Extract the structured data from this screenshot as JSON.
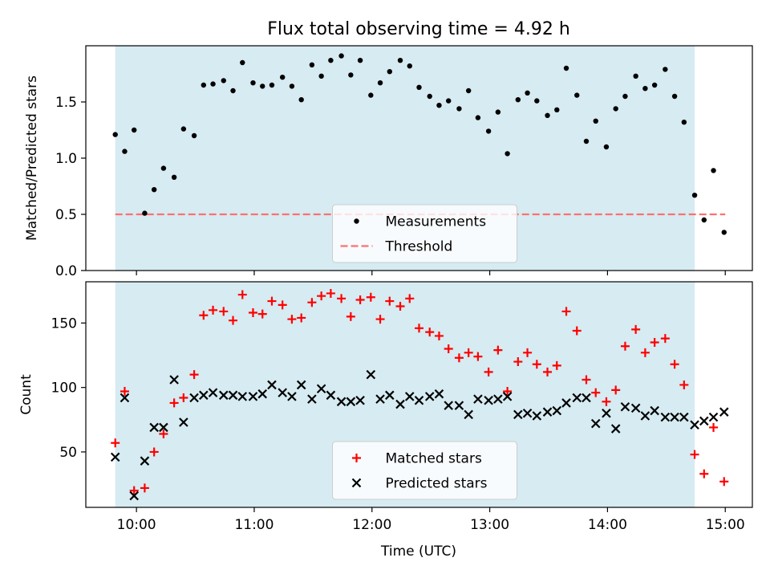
{
  "figure": {
    "title": "Flux total observing time = 4.92 h",
    "xlabel": "Time (UTC)"
  },
  "chart_data": [
    {
      "type": "scatter",
      "panel": "top",
      "title": "Flux total observing time = 4.92 h",
      "xlabel": "Time (UTC)",
      "ylabel": "Matched/Predicted stars",
      "x_unit": "hours UTC",
      "xlim": [
        9.57,
        15.23
      ],
      "ylim": [
        0,
        2.0
      ],
      "yticks": [
        0.0,
        0.5,
        1.0,
        1.5
      ],
      "ytick_labels": [
        "0.0",
        "0.5",
        "1.0",
        "1.5"
      ],
      "xticks": [
        10,
        11,
        12,
        13,
        14,
        15
      ],
      "xtick_labels": [
        "10:00",
        "11:00",
        "12:00",
        "13:00",
        "14:00",
        "15:00"
      ],
      "show_xtick_labels": false,
      "shaded_span": [
        9.82,
        14.74
      ],
      "shade_color": "#add8e6",
      "threshold": {
        "name": "Threshold",
        "y": 0.5,
        "x_range": [
          9.82,
          15.0
        ],
        "color": "#ff7070"
      },
      "legend_position": "lower-center",
      "series": [
        {
          "name": "Measurements",
          "marker": "dot",
          "color": "#000000",
          "x": [
            9.82,
            9.9,
            9.98,
            10.07,
            10.15,
            10.23,
            10.32,
            10.4,
            10.49,
            10.57,
            10.65,
            10.74,
            10.82,
            10.9,
            10.99,
            11.07,
            11.15,
            11.24,
            11.32,
            11.4,
            11.49,
            11.57,
            11.65,
            11.74,
            11.82,
            11.9,
            11.99,
            12.07,
            12.15,
            12.24,
            12.32,
            12.4,
            12.49,
            12.57,
            12.65,
            12.74,
            12.82,
            12.9,
            12.99,
            13.07,
            13.15,
            13.24,
            13.32,
            13.4,
            13.49,
            13.57,
            13.65,
            13.74,
            13.82,
            13.9,
            13.99,
            14.07,
            14.15,
            14.24,
            14.32,
            14.4,
            14.49,
            14.57,
            14.65,
            14.74,
            14.82,
            14.9,
            14.99
          ],
          "y": [
            1.21,
            1.06,
            1.25,
            0.51,
            0.72,
            0.91,
            0.83,
            1.26,
            1.2,
            1.65,
            1.66,
            1.69,
            1.6,
            1.85,
            1.67,
            1.64,
            1.65,
            1.72,
            1.64,
            1.52,
            1.83,
            1.73,
            1.87,
            1.91,
            1.74,
            1.87,
            1.56,
            1.67,
            1.77,
            1.87,
            1.82,
            1.63,
            1.55,
            1.47,
            1.51,
            1.44,
            1.6,
            1.36,
            1.24,
            1.41,
            1.04,
            1.52,
            1.58,
            1.51,
            1.38,
            1.43,
            1.8,
            1.56,
            1.15,
            1.33,
            1.1,
            1.44,
            1.55,
            1.73,
            1.62,
            1.65,
            1.79,
            1.55,
            1.32,
            0.67,
            0.45,
            0.89,
            0.34
          ]
        }
      ]
    },
    {
      "type": "scatter",
      "panel": "bottom",
      "xlabel": "Time (UTC)",
      "ylabel": "Count",
      "x_unit": "hours UTC",
      "xlim": [
        9.57,
        15.23
      ],
      "ylim": [
        7,
        182
      ],
      "yticks": [
        50,
        100,
        150
      ],
      "ytick_labels": [
        "50",
        "100",
        "150"
      ],
      "xticks": [
        10,
        11,
        12,
        13,
        14,
        15
      ],
      "xtick_labels": [
        "10:00",
        "11:00",
        "12:00",
        "13:00",
        "14:00",
        "15:00"
      ],
      "show_xtick_labels": true,
      "shaded_span": [
        9.82,
        14.74
      ],
      "shade_color": "#add8e6",
      "legend_position": "lower-center",
      "series": [
        {
          "name": "Matched stars",
          "marker": "plus",
          "color": "#ff0000",
          "x": [
            9.82,
            9.9,
            9.98,
            10.07,
            10.15,
            10.23,
            10.32,
            10.4,
            10.49,
            10.57,
            10.65,
            10.74,
            10.82,
            10.9,
            10.99,
            11.07,
            11.15,
            11.24,
            11.32,
            11.4,
            11.49,
            11.57,
            11.65,
            11.74,
            11.82,
            11.9,
            11.99,
            12.07,
            12.15,
            12.24,
            12.32,
            12.4,
            12.49,
            12.57,
            12.65,
            12.74,
            12.82,
            12.9,
            12.99,
            13.07,
            13.15,
            13.24,
            13.32,
            13.4,
            13.49,
            13.57,
            13.65,
            13.74,
            13.82,
            13.9,
            13.99,
            14.07,
            14.15,
            14.24,
            14.32,
            14.4,
            14.49,
            14.57,
            14.65,
            14.74,
            14.82,
            14.9,
            14.99
          ],
          "y": [
            57,
            97,
            20,
            22,
            50,
            64,
            88,
            92,
            110,
            156,
            160,
            159,
            152,
            172,
            158,
            157,
            167,
            164,
            153,
            154,
            166,
            171,
            173,
            169,
            155,
            168,
            170,
            153,
            167,
            163,
            169,
            146,
            143,
            140,
            130,
            123,
            127,
            124,
            112,
            129,
            97,
            120,
            127,
            118,
            112,
            117,
            159,
            144,
            106,
            96,
            89,
            98,
            132,
            145,
            127,
            135,
            138,
            118,
            102,
            48,
            33,
            69,
            27
          ]
        },
        {
          "name": "Predicted stars",
          "marker": "x",
          "color": "#000000",
          "x": [
            9.82,
            9.9,
            9.98,
            10.07,
            10.15,
            10.23,
            10.32,
            10.4,
            10.49,
            10.57,
            10.65,
            10.74,
            10.82,
            10.9,
            10.99,
            11.07,
            11.15,
            11.24,
            11.32,
            11.4,
            11.49,
            11.57,
            11.65,
            11.74,
            11.82,
            11.9,
            11.99,
            12.07,
            12.15,
            12.24,
            12.32,
            12.4,
            12.49,
            12.57,
            12.65,
            12.74,
            12.82,
            12.9,
            12.99,
            13.07,
            13.15,
            13.24,
            13.32,
            13.4,
            13.49,
            13.57,
            13.65,
            13.74,
            13.82,
            13.9,
            13.99,
            14.07,
            14.15,
            14.24,
            14.32,
            14.4,
            14.49,
            14.57,
            14.65,
            14.74,
            14.82,
            14.9,
            14.99
          ],
          "y": [
            46,
            92,
            16,
            43,
            69,
            69,
            106,
            73,
            92,
            94,
            96,
            94,
            94,
            93,
            93,
            95,
            102,
            96,
            93,
            102,
            91,
            99,
            94,
            89,
            89,
            90,
            110,
            91,
            94,
            87,
            93,
            90,
            93,
            95,
            86,
            86,
            79,
            91,
            90,
            91,
            93,
            79,
            80,
            78,
            81,
            82,
            88,
            92,
            92,
            72,
            80,
            68,
            85,
            84,
            78,
            82,
            77,
            77,
            77,
            71,
            74,
            77,
            81
          ]
        }
      ]
    }
  ]
}
